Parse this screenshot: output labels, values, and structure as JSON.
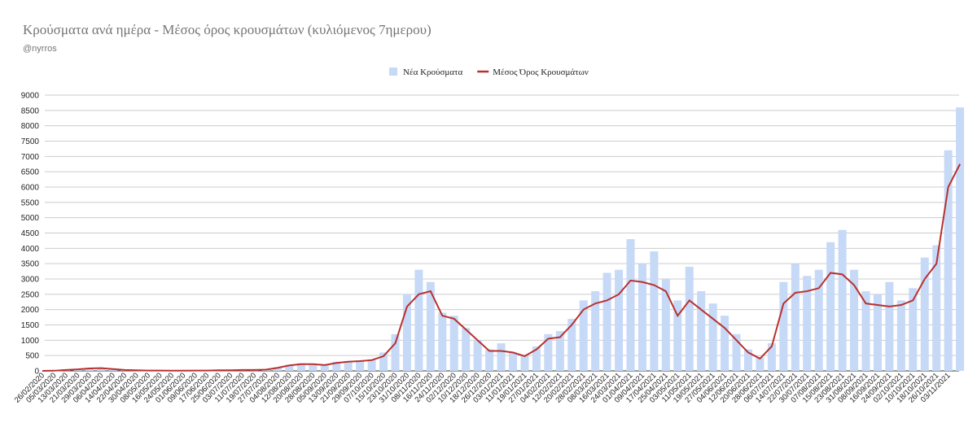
{
  "chart_data": {
    "type": "bar-line",
    "title": "Κρούσματα ανά ημέρα - Μέσος όρος κρουσμάτων (κυλιόμενος 7ημερου)",
    "subtitle": "@nyrros",
    "categories": [
      "26/02/2020",
      "05/03/2020",
      "13/03/2020",
      "21/03/2020",
      "29/03/2020",
      "06/04/2020",
      "14/04/2020",
      "22/04/2020",
      "30/04/2020",
      "08/05/2020",
      "16/05/2020",
      "24/05/2020",
      "01/06/2020",
      "09/06/2020",
      "17/06/2020",
      "25/06/2020",
      "03/07/2020",
      "11/07/2020",
      "19/07/2020",
      "27/07/2020",
      "04/08/2020",
      "12/08/2020",
      "20/08/2020",
      "28/08/2020",
      "05/09/2020",
      "13/09/2020",
      "21/09/2020",
      "29/09/2020",
      "07/10/2020",
      "15/10/2020",
      "23/10/2020",
      "31/10/2020",
      "08/11/2020",
      "16/11/2020",
      "24/11/2020",
      "02/12/2020",
      "10/12/2020",
      "18/12/2020",
      "26/12/2020",
      "03/01/2021",
      "11/01/2021",
      "19/01/2021",
      "27/01/2021",
      "04/02/2021",
      "12/02/2021",
      "20/02/2021",
      "28/02/2021",
      "08/03/2021",
      "16/03/2021",
      "24/03/2021",
      "01/04/2021",
      "09/04/2021",
      "17/04/2021",
      "25/04/2021",
      "03/05/2021",
      "11/05/2021",
      "19/05/2021",
      "27/05/2021",
      "04/06/2021",
      "12/06/2021",
      "20/06/2021",
      "28/06/2021",
      "06/07/2021",
      "14/07/2021",
      "22/07/2021",
      "30/07/2021",
      "07/08/2021",
      "15/08/2021",
      "23/08/2021",
      "31/08/2021",
      "08/09/2021",
      "16/09/2021",
      "24/09/2021",
      "02/10/2021",
      "10/10/2021",
      "18/10/2021",
      "26/10/2021",
      "03/11/2021",
      null
    ],
    "series": [
      {
        "name": "Νέα Κρούσματα",
        "kind": "bar",
        "color": "#c6d9f7",
        "values": [
          0,
          10,
          40,
          60,
          90,
          100,
          70,
          40,
          20,
          15,
          10,
          5,
          5,
          15,
          15,
          25,
          20,
          35,
          30,
          50,
          120,
          200,
          250,
          230,
          200,
          300,
          320,
          340,
          380,
          600,
          1200,
          2500,
          3300,
          2900,
          1900,
          1800,
          1400,
          1000,
          700,
          900,
          600,
          500,
          800,
          1200,
          1300,
          1700,
          2300,
          2600,
          3200,
          3300,
          4300,
          3500,
          3900,
          3000,
          2300,
          3400,
          2600,
          2200,
          1800,
          1200,
          700,
          450,
          900,
          2900,
          3500,
          3100,
          3300,
          4200,
          4600,
          3300,
          2600,
          2500,
          2900,
          2300,
          2700,
          3700,
          4100,
          7200,
          8600
        ]
      },
      {
        "name": "Μέσος Όρος Κρουσμάτων",
        "kind": "line",
        "color": "#b8312f",
        "values": [
          0,
          5,
          30,
          50,
          80,
          90,
          60,
          30,
          20,
          10,
          10,
          5,
          5,
          10,
          10,
          20,
          20,
          30,
          30,
          40,
          100,
          180,
          220,
          220,
          190,
          260,
          300,
          320,
          350,
          480,
          900,
          2100,
          2500,
          2600,
          1800,
          1700,
          1350,
          1000,
          650,
          650,
          600,
          480,
          700,
          1050,
          1100,
          1500,
          2000,
          2200,
          2300,
          2500,
          2950,
          2900,
          2800,
          2600,
          1800,
          2300,
          2000,
          1700,
          1400,
          1000,
          600,
          400,
          800,
          2200,
          2550,
          2600,
          2700,
          3200,
          3150,
          2800,
          2200,
          2150,
          2100,
          2150,
          2300,
          3000,
          3500,
          6000,
          6750
        ]
      }
    ],
    "ylim": [
      0,
      9000
    ],
    "yticks": [
      0,
      500,
      1000,
      1500,
      2000,
      2500,
      3000,
      3500,
      4000,
      4500,
      5000,
      5500,
      6000,
      6500,
      7000,
      7500,
      8000,
      8500,
      9000
    ],
    "grid": true
  }
}
